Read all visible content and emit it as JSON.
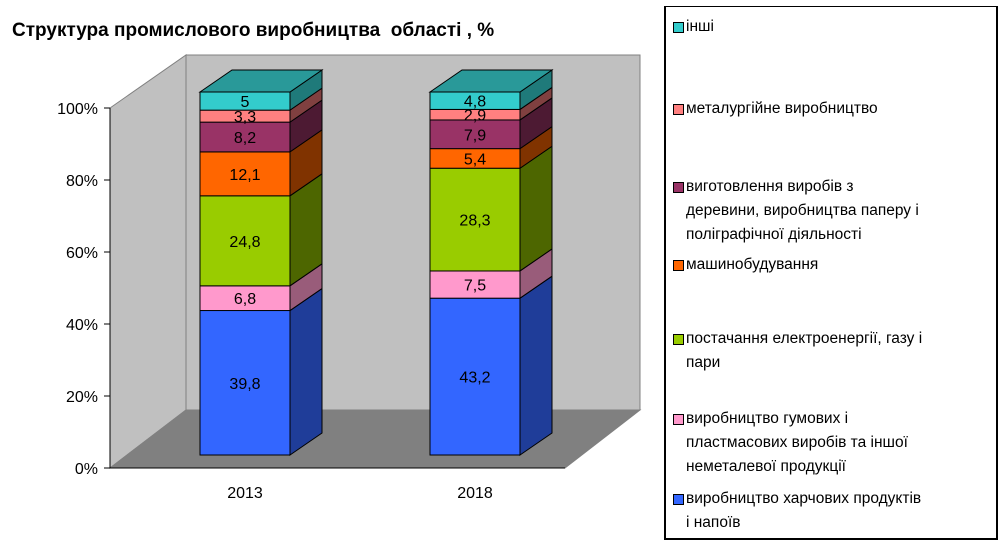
{
  "chart_data": {
    "type": "bar",
    "stacked": true,
    "title": "Структура промислового виробництва  області , %",
    "categories": [
      "2013",
      "2018"
    ],
    "yticks": [
      "0%",
      "20%",
      "40%",
      "60%",
      "80%",
      "100%"
    ],
    "ylim": [
      0,
      100
    ],
    "series": [
      {
        "name": "виробництво харчових продуктів і напоїв",
        "color": "#3366FF",
        "side": "#1F3D99",
        "values": [
          39.8,
          43.2
        ],
        "labels": [
          "39,8",
          "43,2"
        ]
      },
      {
        "name": "виробництво гумових і пластмасових виробів та іншої неметалевої продукції",
        "color": "#FF99CC",
        "side": "#995C7A",
        "values": [
          6.8,
          7.5
        ],
        "labels": [
          "6,8",
          "7,5"
        ]
      },
      {
        "name": "постачання електроенергії, газу і пари",
        "color": "#99CC00",
        "side": "#4D6600",
        "values": [
          24.8,
          28.3
        ],
        "labels": [
          "24,8",
          "28,3"
        ]
      },
      {
        "name": "машинобудування",
        "color": "#FF6600",
        "side": "#803300",
        "values": [
          12.1,
          5.4
        ],
        "labels": [
          "12,1",
          "5,4"
        ]
      },
      {
        "name": "виготовлення виробів з деревини, виробництва паперу і поліграфічної діяльності",
        "color": "#993366",
        "side": "#4D1A33",
        "values": [
          8.2,
          7.9
        ],
        "labels": [
          "8,2",
          "7,9"
        ]
      },
      {
        "name": "металургійне виробництво",
        "color": "#FF8080",
        "side": "#804040",
        "values": [
          3.3,
          2.9
        ],
        "labels": [
          "3,3",
          "2,9"
        ]
      },
      {
        "name": "інші",
        "color": "#33CCCC",
        "side": "#1F7A7A",
        "top": "#299999",
        "values": [
          5,
          4.8
        ],
        "labels": [
          "5",
          "4,8"
        ]
      }
    ],
    "legend_position": "right"
  },
  "legend": [
    {
      "lines": [
        "інші"
      ]
    },
    {
      "lines": [
        "металургійне виробництво"
      ]
    },
    {
      "lines": [
        "виготовлення виробів з",
        "деревини, виробництва паперу і",
        "поліграфічної діяльності"
      ]
    },
    {
      "lines": [
        "машинобудування"
      ]
    },
    {
      "lines": [
        "постачання електроенергії, газу і",
        "пари"
      ]
    },
    {
      "lines": [
        "виробництво гумових і",
        "пластмасових виробів та іншої",
        "неметалевої продукції"
      ]
    },
    {
      "lines": [
        "виробництво харчових продуктів",
        "і напоїв"
      ]
    }
  ]
}
